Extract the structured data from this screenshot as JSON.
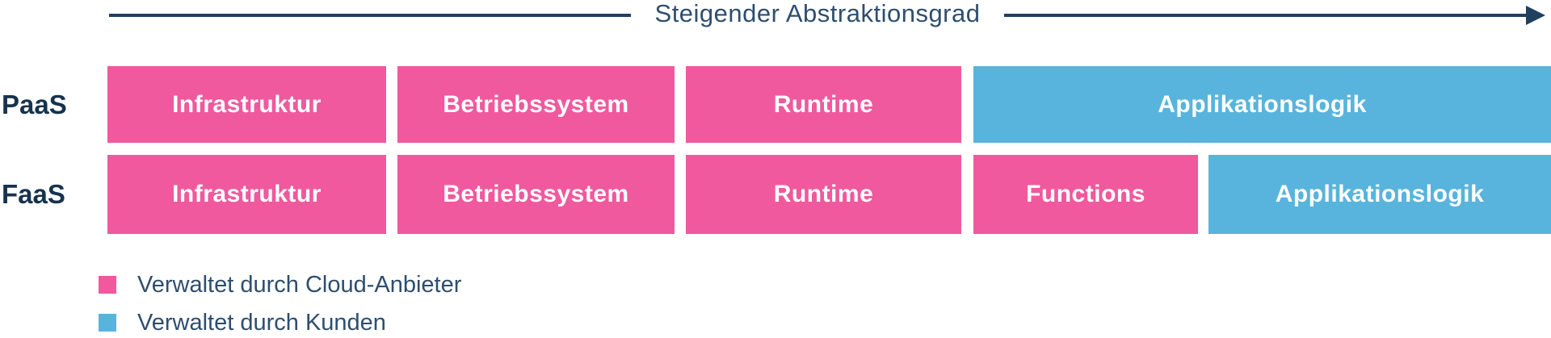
{
  "title": {
    "text": "Steigender Abstraktionsgrad"
  },
  "arrow": {
    "direction": "right"
  },
  "rows": [
    {
      "label": "PaaS",
      "boxes": [
        {
          "label": "Infrastruktur",
          "color": "pink"
        },
        {
          "label": "Betriebssystem",
          "color": "pink"
        },
        {
          "label": "Runtime",
          "color": "pink"
        },
        {
          "label": "Applikationslogik",
          "color": "blue"
        }
      ]
    },
    {
      "label": "FaaS",
      "boxes": [
        {
          "label": "Infrastruktur",
          "color": "pink"
        },
        {
          "label": "Betriebssystem",
          "color": "pink"
        },
        {
          "label": "Runtime",
          "color": "pink"
        },
        {
          "label": "Functions",
          "color": "pink"
        },
        {
          "label": "Applikationslogik",
          "color": "blue"
        }
      ]
    }
  ],
  "legend": [
    {
      "label": "Verwaltet durch Cloud-Anbieter",
      "color": "pink"
    },
    {
      "label": "Verwaltet durch Kunden",
      "color": "blue"
    }
  ],
  "colors": {
    "pink": "#F0599E",
    "blue": "#58B4DC",
    "navy_dark": "#16334E",
    "navy_line": "#1F4060",
    "navy_title": "#2E4E6E"
  }
}
